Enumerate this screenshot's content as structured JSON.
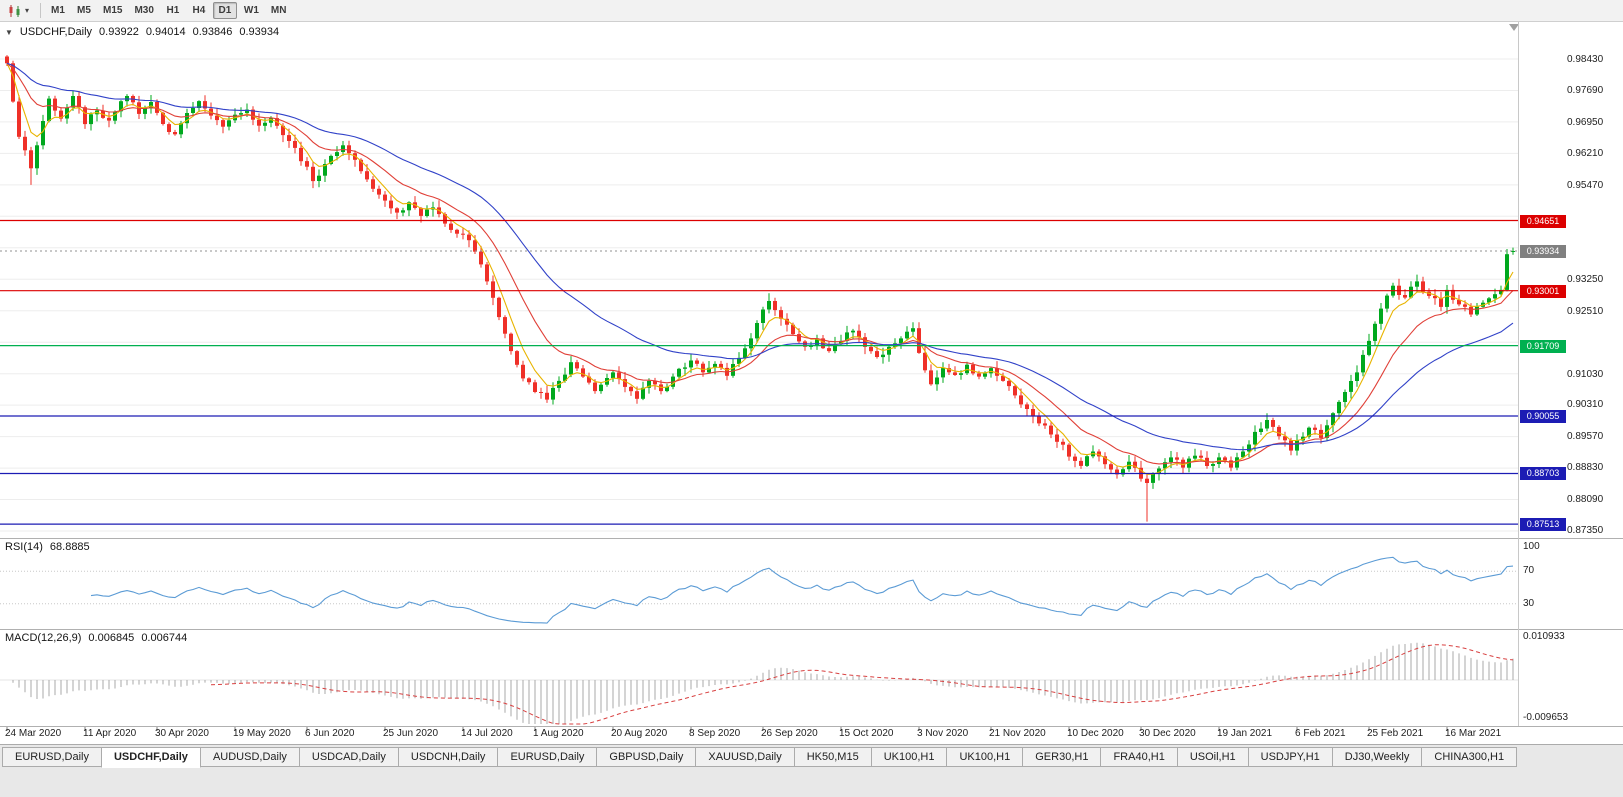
{
  "toolbar": {
    "timeframes": [
      "M1",
      "M5",
      "M15",
      "M30",
      "H1",
      "H4",
      "D1",
      "W1",
      "MN"
    ],
    "active_timeframe": "D1",
    "dropdown_icon": "▾"
  },
  "chart_header": {
    "collapse_icon": "▼",
    "symbol": "USDCHF,Daily",
    "open": "0.93922",
    "high": "0.94014",
    "low": "0.93846",
    "close": "0.93934"
  },
  "price_axis": {
    "tick_labels": [
      "0.98430",
      "0.97690",
      "0.96950",
      "0.96210",
      "0.95470",
      "0.93250",
      "0.92510",
      "0.91030",
      "0.90310",
      "0.89570",
      "0.88830",
      "0.88090",
      "0.87350"
    ],
    "badges": [
      {
        "text": "0.94651",
        "color": "#DC0000"
      },
      {
        "text": "0.93934",
        "color": "#808080"
      },
      {
        "text": "0.93001",
        "color": "#DC0000"
      },
      {
        "text": "0.91709",
        "color": "#00B050"
      },
      {
        "text": "0.90055",
        "color": "#1C1CB4"
      },
      {
        "text": "0.88703",
        "color": "#1C1CB4"
      },
      {
        "text": "0.87513",
        "color": "#1C1CB4"
      }
    ]
  },
  "panes": {
    "rsi": {
      "name_label": "RSI(14)",
      "value_label": "68.8885",
      "tick_labels": [
        "100",
        "70",
        "30"
      ]
    },
    "macd": {
      "name_label": "MACD(12,26,9)",
      "values": [
        "0.006845",
        "0.006744"
      ],
      "tick_labels": [
        "0.010933",
        "-0.009653"
      ]
    }
  },
  "time_axis": {
    "labels": [
      "24 Mar 2020",
      "11 Apr 2020",
      "30 Apr 2020",
      "19 May 2020",
      "6 Jun 2020",
      "25 Jun 2020",
      "14 Jul 2020",
      "1 Aug 2020",
      "20 Aug 2020",
      "8 Sep 2020",
      "26 Sep 2020",
      "15 Oct 2020",
      "3 Nov 2020",
      "21 Nov 2020",
      "10 Dec 2020",
      "30 Dec 2020",
      "19 Jan 2021",
      "6 Feb 2021",
      "25 Feb 2021",
      "16 Mar 2021"
    ]
  },
  "tabs": [
    "EURUSD,Daily",
    "USDCHF,Daily",
    "AUDUSD,Daily",
    "USDCAD,Daily",
    "USDCNH,Daily",
    "EURUSD,Daily",
    "GBPUSD,Daily",
    "XAUUSD,Daily",
    "HK50,M15",
    "UK100,H1",
    "UK100,H1",
    "GER30,H1",
    "FRA40,H1",
    "USOil,H1",
    "USDJPY,H1",
    "DJ30,Weekly",
    "CHINA300,H1"
  ],
  "active_tab_index": 1,
  "chart_data": {
    "type": "candlestick",
    "symbol": "USDCHF",
    "period": "Daily",
    "num_bars": 252,
    "last_bar": {
      "open": 0.93922,
      "high": 0.94014,
      "low": 0.93846,
      "close": 0.93934
    },
    "current_price": 0.93934,
    "y_axis": {
      "min": 0.8735,
      "max": 0.9843,
      "step": 0.0074,
      "count": 16
    },
    "x_tick_bar_indices": [
      0,
      13,
      25,
      38,
      50,
      63,
      76,
      88,
      101,
      114,
      126,
      139,
      152,
      164,
      177,
      189,
      202,
      215,
      227,
      240
    ],
    "price_anchors": [
      [
        0,
        0.9835
      ],
      [
        1,
        0.9745
      ],
      [
        2,
        0.9662
      ],
      [
        4,
        0.9588
      ],
      [
        5,
        0.9642
      ],
      [
        7,
        0.9752
      ],
      [
        9,
        0.9705
      ],
      [
        11,
        0.9758
      ],
      [
        13,
        0.9692
      ],
      [
        15,
        0.9724
      ],
      [
        17,
        0.97
      ],
      [
        20,
        0.9758
      ],
      [
        22,
        0.9716
      ],
      [
        24,
        0.9744
      ],
      [
        26,
        0.9692
      ],
      [
        28,
        0.9668
      ],
      [
        30,
        0.9718
      ],
      [
        32,
        0.9746
      ],
      [
        34,
        0.9712
      ],
      [
        36,
        0.9686
      ],
      [
        38,
        0.9714
      ],
      [
        40,
        0.9726
      ],
      [
        42,
        0.9688
      ],
      [
        44,
        0.9706
      ],
      [
        46,
        0.9666
      ],
      [
        48,
        0.9636
      ],
      [
        51,
        0.9558
      ],
      [
        53,
        0.9598
      ],
      [
        56,
        0.9642
      ],
      [
        58,
        0.9608
      ],
      [
        60,
        0.9562
      ],
      [
        63,
        0.9512
      ],
      [
        65,
        0.9484
      ],
      [
        67,
        0.9508
      ],
      [
        69,
        0.9476
      ],
      [
        71,
        0.9496
      ],
      [
        73,
        0.9458
      ],
      [
        76,
        0.9432
      ],
      [
        78,
        0.9392
      ],
      [
        80,
        0.9322
      ],
      [
        82,
        0.9238
      ],
      [
        84,
        0.9158
      ],
      [
        86,
        0.9094
      ],
      [
        88,
        0.9062
      ],
      [
        90,
        0.9044
      ],
      [
        92,
        0.9088
      ],
      [
        94,
        0.9132
      ],
      [
        96,
        0.9098
      ],
      [
        98,
        0.9064
      ],
      [
        101,
        0.9108
      ],
      [
        103,
        0.9074
      ],
      [
        105,
        0.9046
      ],
      [
        107,
        0.9088
      ],
      [
        109,
        0.9064
      ],
      [
        111,
        0.9098
      ],
      [
        114,
        0.9136
      ],
      [
        116,
        0.9108
      ],
      [
        118,
        0.9128
      ],
      [
        120,
        0.91
      ],
      [
        122,
        0.9142
      ],
      [
        124,
        0.9188
      ],
      [
        126,
        0.9256
      ],
      [
        127,
        0.9276
      ],
      [
        129,
        0.9234
      ],
      [
        131,
        0.9198
      ],
      [
        133,
        0.9168
      ],
      [
        135,
        0.9188
      ],
      [
        137,
        0.9158
      ],
      [
        139,
        0.9182
      ],
      [
        141,
        0.9206
      ],
      [
        143,
        0.9168
      ],
      [
        145,
        0.9144
      ],
      [
        147,
        0.9168
      ],
      [
        149,
        0.9188
      ],
      [
        151,
        0.9212
      ],
      [
        152,
        0.9154
      ],
      [
        154,
        0.908
      ],
      [
        156,
        0.9118
      ],
      [
        158,
        0.9102
      ],
      [
        160,
        0.9126
      ],
      [
        162,
        0.9098
      ],
      [
        164,
        0.9118
      ],
      [
        166,
        0.9088
      ],
      [
        168,
        0.9054
      ],
      [
        170,
        0.9022
      ],
      [
        172,
        0.8988
      ],
      [
        174,
        0.8962
      ],
      [
        176,
        0.8938
      ],
      [
        177,
        0.891
      ],
      [
        179,
        0.8888
      ],
      [
        181,
        0.8922
      ],
      [
        183,
        0.8892
      ],
      [
        185,
        0.8868
      ],
      [
        187,
        0.8898
      ],
      [
        189,
        0.8858
      ],
      [
        190,
        0.8848
      ],
      [
        192,
        0.8882
      ],
      [
        194,
        0.8908
      ],
      [
        196,
        0.8884
      ],
      [
        198,
        0.8912
      ],
      [
        200,
        0.8888
      ],
      [
        202,
        0.8908
      ],
      [
        204,
        0.8884
      ],
      [
        206,
        0.8922
      ],
      [
        208,
        0.8968
      ],
      [
        210,
        0.8996
      ],
      [
        212,
        0.8958
      ],
      [
        214,
        0.8924
      ],
      [
        215,
        0.8948
      ],
      [
        217,
        0.8978
      ],
      [
        219,
        0.8954
      ],
      [
        221,
        0.9012
      ],
      [
        223,
        0.9062
      ],
      [
        225,
        0.9108
      ],
      [
        227,
        0.9182
      ],
      [
        229,
        0.9258
      ],
      [
        231,
        0.9312
      ],
      [
        233,
        0.9284
      ],
      [
        235,
        0.9322
      ],
      [
        237,
        0.9288
      ],
      [
        239,
        0.9262
      ],
      [
        240,
        0.9302
      ],
      [
        242,
        0.9268
      ],
      [
        244,
        0.9244
      ],
      [
        246,
        0.9272
      ],
      [
        248,
        0.9292
      ],
      [
        249,
        0.9302
      ],
      [
        250,
        0.9386
      ],
      [
        251,
        0.93934
      ]
    ],
    "special_wicks": [
      {
        "i": 4,
        "side": "low",
        "price": 0.9549
      },
      {
        "i": 127,
        "side": "high",
        "price": 0.9294
      },
      {
        "i": 151,
        "side": "high",
        "price": 0.9226
      },
      {
        "i": 190,
        "side": "low",
        "price": 0.8757
      },
      {
        "i": 210,
        "side": "high",
        "price": 0.9012
      },
      {
        "i": 250,
        "side": "high",
        "price": 0.9398
      }
    ],
    "horizontal_lines": [
      {
        "price": 0.94651,
        "color": "#DC0000"
      },
      {
        "price": 0.93001,
        "color": "#DC0000"
      },
      {
        "price": 0.91709,
        "color": "#00B050"
      },
      {
        "price": 0.90055,
        "color": "#1C1CB4"
      },
      {
        "price": 0.88703,
        "color": "#1C1CB4"
      },
      {
        "price": 0.87513,
        "color": "#1C1CB4"
      }
    ],
    "moving_averages": [
      {
        "period": 5,
        "color": "#E8B400"
      },
      {
        "period": 14,
        "color": "#E04038"
      },
      {
        "period": 34,
        "color": "#3142C8"
      }
    ],
    "rsi": {
      "period": 14,
      "current": 68.8885,
      "levels": [
        70,
        30
      ],
      "range": [
        0,
        100
      ],
      "color": "#5B9BD5"
    },
    "macd": {
      "fast": 12,
      "slow": 26,
      "signal": 9,
      "current_macd": 0.006845,
      "current_signal": 0.006744,
      "axis_max": 0.010933,
      "axis_min": -0.009653
    },
    "colors": {
      "up": "#00A81E",
      "down": "#EF3028",
      "grid": "#EDEDED",
      "macd_hist": "#A8A8A8",
      "macd_signal": "#D84040"
    }
  }
}
